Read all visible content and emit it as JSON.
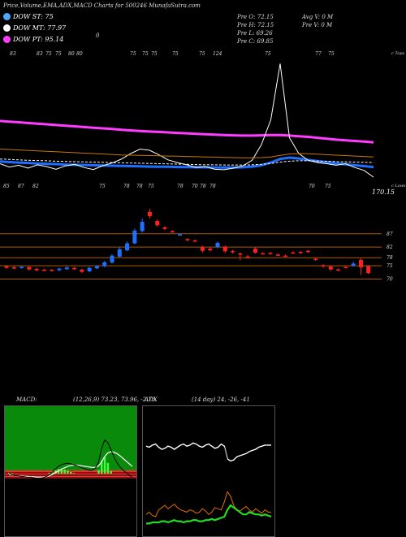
{
  "header": {
    "title": "Price,Volume,EMA,ADX,MACD Charts for 500246",
    "site": "MunafaSutra.com"
  },
  "legend": [
    {
      "label": "DOW ST: 75",
      "color": "#4ea8ff"
    },
    {
      "label": "DOW MT: 77.97",
      "color": "#ffffff"
    },
    {
      "label": "DOW PT: 95.14",
      "color": "#ff3cff"
    }
  ],
  "ohlc": {
    "open": "Pre O: 72.15",
    "high": "Pre H: 72.15",
    "low": "Pre L: 69.26",
    "close": "Pre C: 69.85"
  },
  "avg_volume": "Avg V: 0 M",
  "pre_volume": "Pre V: 0 M",
  "small_mark": "0",
  "upper_label": "c Tops",
  "lower_label": "c Lows",
  "price_readout": "170.15",
  "tops_labels": [
    "83",
    "83",
    "75",
    "75",
    "80",
    "80",
    "75",
    "75",
    "75",
    "75",
    "75",
    "124",
    "75",
    "77",
    "75"
  ],
  "lows_labels": [
    "85",
    "87",
    "82",
    "75",
    "78",
    "78",
    "75",
    "78",
    "70",
    "78",
    "78",
    "70",
    "75"
  ],
  "level_labels": [
    "87",
    "82",
    "78",
    "75",
    "70"
  ],
  "macd": {
    "title": "MACD",
    "params": "(12,26,9) 73.23, 73.96, -2.73"
  },
  "adx": {
    "title": "ADX",
    "params": "(14 day) 24, -26, -41"
  },
  "chart_data": {
    "type": "line",
    "title": "Price,Volume,EMA,ADX,MACD Charts for 500246",
    "price_series": [
      {
        "name": "DOW ST",
        "color": "#1e6fff",
        "values": [
          77.5,
          77.2,
          77.0,
          76.8,
          76.6,
          76.4,
          76.3,
          76.1,
          76.0,
          75.9,
          75.8,
          75.7,
          75.6,
          75.5,
          75.4,
          75.3,
          75.2,
          75.1,
          75.1,
          75.0,
          75.0,
          74.9,
          74.9,
          74.8,
          74.8,
          74.8,
          74.9,
          75.2,
          75.8,
          77.0,
          78.6,
          79.2,
          78.8,
          78.2,
          77.6,
          77.1,
          76.6,
          76.2,
          75.8,
          75.4,
          75.0
        ]
      },
      {
        "name": "DOW MT",
        "color": "#ffffff",
        "values": [
          78.6,
          78.4,
          78.2,
          78.0,
          77.9,
          77.8,
          77.6,
          77.5,
          77.4,
          77.3,
          77.2,
          77.1,
          77.0,
          76.9,
          76.8,
          76.7,
          76.6,
          76.5,
          76.4,
          76.3,
          76.2,
          76.1,
          76.0,
          76.0,
          75.9,
          75.9,
          75.9,
          76.0,
          76.2,
          76.6,
          77.2,
          77.6,
          77.8,
          77.8,
          77.7,
          77.6,
          77.4,
          77.3,
          77.2,
          77.1,
          77.0
        ]
      },
      {
        "name": "DOW PT",
        "color": "#ff3cff",
        "values": [
          95.5,
          95.2,
          94.9,
          94.6,
          94.3,
          94.0,
          93.7,
          93.4,
          93.1,
          92.8,
          92.5,
          92.2,
          91.9,
          91.6,
          91.3,
          91.0,
          90.8,
          90.6,
          90.4,
          90.2,
          90.0,
          89.8,
          89.6,
          89.4,
          89.2,
          89.1,
          89.0,
          89.0,
          89.1,
          89.2,
          89.2,
          89.0,
          88.7,
          88.4,
          88.0,
          87.6,
          87.2,
          86.9,
          86.6,
          86.3,
          86.0
        ]
      },
      {
        "name": "Close",
        "color": "#ffffff",
        "values": [
          76.5,
          75.0,
          75.8,
          74.5,
          76.0,
          75.2,
          74.0,
          75.5,
          76.2,
          74.8,
          73.9,
          75.6,
          76.8,
          78.5,
          81.0,
          83.0,
          82.5,
          80.5,
          78.2,
          77.0,
          76.0,
          74.8,
          75.2,
          74.0,
          73.8,
          74.5,
          75.5,
          78.0,
          85.0,
          96.0,
          121.0,
          88.0,
          81.0,
          78.0,
          77.0,
          76.5,
          75.8,
          76.5,
          74.8,
          73.5,
          70.5
        ]
      },
      {
        "name": "EMA slow",
        "color": "#c87800",
        "values": [
          83.0,
          82.8,
          82.6,
          82.4,
          82.2,
          82.0,
          81.8,
          81.6,
          81.4,
          81.2,
          81.0,
          80.8,
          80.6,
          80.4,
          80.3,
          80.2,
          80.1,
          80.0,
          79.9,
          79.8,
          79.7,
          79.6,
          79.5,
          79.4,
          79.3,
          79.2,
          79.1,
          79.1,
          79.2,
          79.5,
          80.2,
          80.8,
          81.0,
          80.9,
          80.7,
          80.5,
          80.3,
          80.1,
          79.9,
          79.7,
          79.5
        ]
      }
    ],
    "candles": [
      {
        "o": 74.8,
        "c": 74.2,
        "h": 75.2,
        "l": 73.8
      },
      {
        "o": 74.4,
        "c": 74.0,
        "h": 74.9,
        "l": 73.6
      },
      {
        "o": 74.2,
        "c": 74.6,
        "h": 75.0,
        "l": 73.9
      },
      {
        "o": 74.5,
        "c": 73.6,
        "h": 74.8,
        "l": 73.2
      },
      {
        "o": 73.8,
        "c": 73.3,
        "h": 74.2,
        "l": 72.9
      },
      {
        "o": 73.5,
        "c": 73.3,
        "h": 73.9,
        "l": 73.0
      },
      {
        "o": 73.4,
        "c": 73.3,
        "h": 73.8,
        "l": 73.0
      },
      {
        "o": 73.3,
        "c": 73.9,
        "h": 74.3,
        "l": 73.0
      },
      {
        "o": 73.7,
        "c": 74.3,
        "h": 74.8,
        "l": 73.4
      },
      {
        "o": 74.2,
        "c": 73.7,
        "h": 74.5,
        "l": 73.3
      },
      {
        "o": 73.5,
        "c": 72.7,
        "h": 73.9,
        "l": 72.3
      },
      {
        "o": 72.9,
        "c": 74.2,
        "h": 74.6,
        "l": 72.5
      },
      {
        "o": 74.0,
        "c": 74.8,
        "h": 75.2,
        "l": 73.7
      },
      {
        "o": 74.8,
        "c": 76.3,
        "h": 76.8,
        "l": 74.4
      },
      {
        "o": 76.2,
        "c": 78.8,
        "h": 79.3,
        "l": 75.8
      },
      {
        "o": 78.4,
        "c": 81.2,
        "h": 81.9,
        "l": 78.0
      },
      {
        "o": 80.8,
        "c": 83.4,
        "h": 84.1,
        "l": 80.4
      },
      {
        "o": 83.4,
        "c": 88.2,
        "h": 89.0,
        "l": 83.0
      },
      {
        "o": 88.0,
        "c": 91.5,
        "h": 92.8,
        "l": 87.4
      },
      {
        "o": 95.2,
        "c": 93.6,
        "h": 96.4,
        "l": 92.8
      },
      {
        "o": 91.8,
        "c": 90.2,
        "h": 92.5,
        "l": 89.6
      },
      {
        "o": 89.4,
        "c": 88.8,
        "h": 90.0,
        "l": 88.3
      },
      {
        "o": 88.0,
        "c": 87.8,
        "h": 88.4,
        "l": 87.4
      },
      {
        "o": 86.6,
        "c": 86.8,
        "h": 87.2,
        "l": 86.2
      },
      {
        "o": 85.0,
        "c": 84.6,
        "h": 85.4,
        "l": 84.2
      },
      {
        "o": 84.5,
        "c": 84.2,
        "h": 84.9,
        "l": 83.9
      },
      {
        "o": 82.0,
        "c": 80.6,
        "h": 82.6,
        "l": 80.0
      },
      {
        "o": 81.4,
        "c": 80.8,
        "h": 81.9,
        "l": 80.3
      },
      {
        "o": 82.0,
        "c": 83.6,
        "h": 84.1,
        "l": 81.5
      },
      {
        "o": 82.2,
        "c": 80.4,
        "h": 82.6,
        "l": 79.8
      },
      {
        "o": 80.5,
        "c": 80.1,
        "h": 81.0,
        "l": 79.6
      },
      {
        "o": 79.6,
        "c": 79.4,
        "h": 80.0,
        "l": 77.0
      },
      {
        "o": 78.5,
        "c": 78.2,
        "h": 79.0,
        "l": 77.8
      },
      {
        "o": 81.4,
        "c": 79.9,
        "h": 81.9,
        "l": 79.5
      },
      {
        "o": 79.7,
        "c": 79.5,
        "h": 80.1,
        "l": 79.1
      },
      {
        "o": 79.8,
        "c": 79.6,
        "h": 80.2,
        "l": 79.2
      },
      {
        "o": 79.2,
        "c": 79.1,
        "h": 79.6,
        "l": 78.8
      },
      {
        "o": 78.8,
        "c": 78.6,
        "h": 79.2,
        "l": 78.3
      },
      {
        "o": 80.0,
        "c": 79.8,
        "h": 80.4,
        "l": 79.4
      },
      {
        "o": 80.2,
        "c": 79.8,
        "h": 80.5,
        "l": 79.4
      },
      {
        "o": 80.6,
        "c": 80.2,
        "h": 81.0,
        "l": 79.8
      },
      {
        "o": 77.6,
        "c": 77.4,
        "h": 78.0,
        "l": 76.8
      },
      {
        "o": 75.2,
        "c": 74.8,
        "h": 75.6,
        "l": 74.2
      },
      {
        "o": 74.7,
        "c": 73.6,
        "h": 75.2,
        "l": 73.0
      },
      {
        "o": 73.6,
        "c": 73.4,
        "h": 74.0,
        "l": 73.0
      },
      {
        "o": 74.5,
        "c": 74.3,
        "h": 75.0,
        "l": 74.0
      },
      {
        "o": 75.0,
        "c": 75.8,
        "h": 76.6,
        "l": 74.6
      },
      {
        "o": 77.2,
        "c": 74.4,
        "h": 77.8,
        "l": 71.5
      },
      {
        "o": 74.8,
        "c": 72.2,
        "h": 75.2,
        "l": 71.8
      }
    ],
    "levels": [
      87,
      82,
      78,
      75,
      70
    ],
    "macd_line": [
      0.0,
      -0.2,
      -0.4,
      -0.5,
      -0.6,
      -0.7,
      -0.8,
      -0.8,
      -0.9,
      -1.0,
      -1.0,
      -0.9,
      -0.7,
      -0.3,
      0.3,
      1.0,
      1.6,
      2.0,
      2.2,
      2.3,
      2.2,
      2.0,
      1.8,
      1.5,
      1.2,
      1.0,
      0.8,
      0.8,
      1.2,
      2.5,
      5.5,
      7.5,
      7.0,
      5.5,
      3.8,
      2.5,
      1.5,
      0.8,
      0.2,
      -0.3,
      -0.8
    ],
    "macd_signal": [
      -0.2,
      -0.3,
      -0.4,
      -0.5,
      -0.5,
      -0.6,
      -0.6,
      -0.7,
      -0.7,
      -0.8,
      -0.8,
      -0.8,
      -0.7,
      -0.5,
      -0.2,
      0.2,
      0.6,
      1.0,
      1.3,
      1.6,
      1.8,
      1.9,
      1.9,
      1.8,
      1.7,
      1.6,
      1.5,
      1.4,
      1.4,
      1.7,
      2.6,
      3.8,
      4.6,
      4.9,
      4.8,
      4.5,
      4.0,
      3.4,
      2.8,
      2.2,
      1.6
    ],
    "adx_di_plus": [
      22,
      24,
      21,
      20,
      26,
      28,
      30,
      27,
      29,
      31,
      28,
      26,
      25,
      24,
      26,
      25,
      23,
      24,
      27,
      25,
      22,
      24,
      28,
      27,
      26,
      33,
      42,
      38,
      30,
      26,
      25,
      27,
      29,
      26,
      24,
      27,
      25,
      23,
      26,
      24,
      24
    ],
    "adx_di_minus": [
      34,
      33,
      35,
      36,
      33,
      31,
      32,
      34,
      33,
      31,
      33,
      35,
      36,
      34,
      35,
      37,
      36,
      34,
      33,
      35,
      36,
      34,
      32,
      33,
      36,
      34,
      22,
      20,
      21,
      24,
      25,
      26,
      27,
      29,
      30,
      31,
      33,
      34,
      35,
      35,
      35
    ],
    "adx_line": [
      14,
      14,
      15,
      15,
      15,
      16,
      16,
      15,
      16,
      17,
      16,
      16,
      15,
      16,
      16,
      17,
      17,
      16,
      16,
      17,
      17,
      18,
      17,
      18,
      19,
      20,
      26,
      30,
      28,
      26,
      24,
      22,
      22,
      24,
      23,
      22,
      22,
      21,
      22,
      21,
      20
    ]
  }
}
